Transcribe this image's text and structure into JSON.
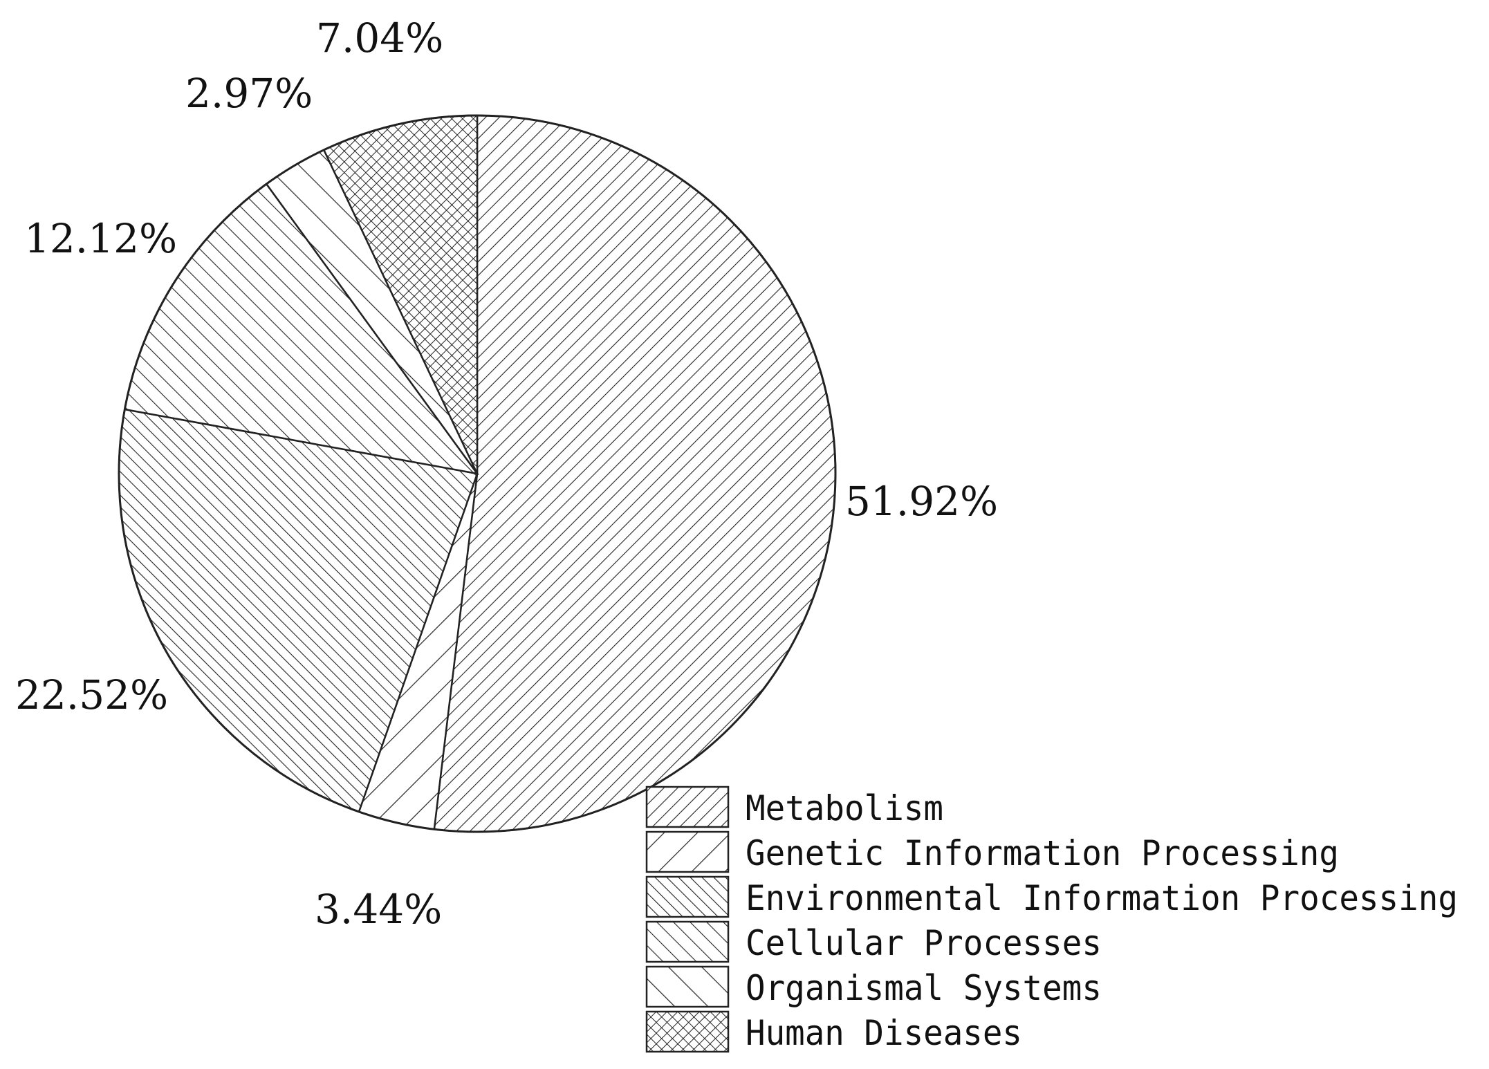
{
  "chart_data": {
    "type": "pie",
    "start_angle_deg": 0,
    "direction": "clockwise",
    "slices": [
      {
        "name": "Metabolism",
        "value": 51.92,
        "label": "51.92%",
        "pattern": "hatch-fwd-dense"
      },
      {
        "name": "Genetic Information Processing",
        "value": 3.44,
        "label": "3.44%",
        "pattern": "hatch-fwd-wide"
      },
      {
        "name": "Environmental Information Processing",
        "value": 22.52,
        "label": "22.52%",
        "pattern": "hatch-back-dense"
      },
      {
        "name": "Cellular Processes",
        "value": 12.12,
        "label": "12.12%",
        "pattern": "hatch-back-medium"
      },
      {
        "name": "Organismal Systems",
        "value": 2.97,
        "label": "2.97%",
        "pattern": "hatch-back-wide"
      },
      {
        "name": "Human Diseases",
        "value": 7.04,
        "label": "7.04%",
        "pattern": "crosshatch"
      }
    ],
    "legend": {
      "placement": "bottom-right",
      "entries": [
        "Metabolism",
        "Genetic Information Processing",
        "Environmental Information Processing",
        "Cellular Processes",
        "Organismal Systems",
        "Human Diseases"
      ]
    },
    "colors": {
      "stroke": "#222222",
      "background": "#ffffff"
    }
  }
}
